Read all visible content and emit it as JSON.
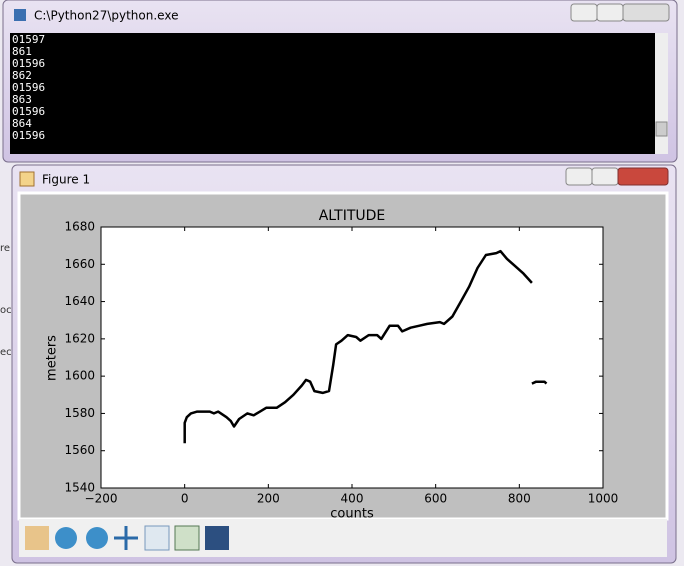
{
  "console": {
    "title": "C:\\Python27\\python.exe",
    "lines": [
      "01597",
      "861",
      "01596",
      "862",
      "01596",
      "863",
      "01596",
      "864",
      "01596"
    ]
  },
  "background_fragments": [
    "re",
    "oc",
    "ec,"
  ],
  "figure_window": {
    "title": "Figure 1"
  },
  "chart_data": {
    "type": "line",
    "title": "ALTITUDE",
    "x_label": "counts",
    "y_label": "meters",
    "x": [
      0,
      0,
      0,
      0,
      5,
      15,
      30,
      60,
      70,
      80,
      100,
      110,
      118,
      130,
      150,
      165,
      180,
      195,
      220,
      240,
      260,
      280,
      290,
      300,
      310,
      330,
      345,
      355,
      362,
      375,
      390,
      410,
      420,
      440,
      460,
      470,
      490,
      510,
      520,
      540,
      560,
      580,
      610,
      620,
      640,
      660,
      680,
      700,
      720,
      745,
      755,
      770,
      790,
      810,
      830,
      830,
      830,
      840,
      860,
      865
    ],
    "values": [
      1564,
      1566,
      1568,
      1575,
      1578,
      1580,
      1581,
      1581,
      1580,
      1581,
      1578,
      1576,
      1573,
      1577,
      1580,
      1579,
      1581,
      1583,
      1583,
      1586,
      1590,
      1595,
      1598,
      1597,
      1592,
      1591,
      1592,
      1606,
      1617,
      1619,
      1622,
      1621,
      1619,
      1622,
      1622,
      1620,
      1627,
      1627,
      1624,
      1626,
      1627,
      1628,
      1629,
      1628,
      1632,
      1640,
      1648,
      1658,
      1665,
      1666,
      1667,
      1663,
      1659,
      1655,
      1650,
      null,
      1596,
      1597,
      1597,
      1596
    ],
    "color": "#000000",
    "xlim": [
      -200,
      1000
    ],
    "ylim": [
      1540,
      1680
    ],
    "xticks": [
      {
        "value": -200,
        "label": "−200"
      },
      0,
      200,
      400,
      600,
      800,
      1000
    ],
    "yticks": [
      1540,
      1560,
      1580,
      1600,
      1620,
      1640,
      1660,
      1680
    ]
  }
}
